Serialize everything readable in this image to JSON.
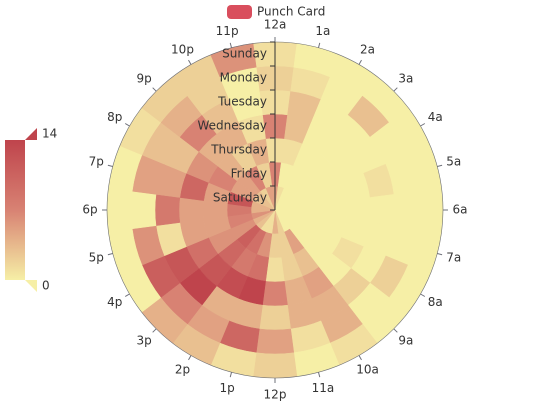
{
  "chart_data": {
    "type": "polar-heatmap",
    "hours": [
      "12a",
      "1a",
      "2a",
      "3a",
      "4a",
      "5a",
      "6a",
      "7a",
      "8a",
      "9a",
      "10a",
      "11a",
      "12p",
      "1p",
      "2p",
      "3p",
      "4p",
      "5p",
      "6p",
      "7p",
      "8p",
      "9p",
      "10p",
      "11p"
    ],
    "days": [
      "Saturday",
      "Friday",
      "Thursday",
      "Wednesday",
      "Tuesday",
      "Monday",
      "Sunday"
    ],
    "series": [
      {
        "name": "Punch Card",
        "color": "#d94e5d",
        "values": [
          [
            5,
            1,
            0,
            0,
            0,
            0,
            0,
            0,
            0,
            0,
            0,
            2,
            4,
            1,
            1,
            3,
            4,
            6,
            4,
            4,
            3,
            3,
            2,
            5
          ],
          [
            7,
            0,
            0,
            0,
            0,
            0,
            0,
            0,
            0,
            0,
            5,
            2,
            2,
            6,
            9,
            11,
            6,
            7,
            8,
            12,
            5,
            5,
            7,
            2
          ],
          [
            1,
            1,
            0,
            0,
            0,
            0,
            0,
            0,
            0,
            0,
            3,
            2,
            1,
            9,
            8,
            10,
            6,
            5,
            5,
            5,
            7,
            4,
            2,
            4
          ],
          [
            7,
            3,
            0,
            0,
            0,
            0,
            0,
            0,
            1,
            0,
            5,
            4,
            7,
            14,
            13,
            12,
            9,
            5,
            5,
            10,
            6,
            4,
            4,
            1
          ],
          [
            1,
            3,
            0,
            0,
            0,
            1,
            0,
            0,
            0,
            2,
            4,
            4,
            2,
            4,
            4,
            14,
            12,
            1,
            8,
            5,
            3,
            7,
            3,
            0
          ],
          [
            2,
            1,
            0,
            3,
            0,
            0,
            0,
            0,
            2,
            0,
            4,
            1,
            5,
            10,
            5,
            7,
            11,
            6,
            0,
            5,
            3,
            4,
            2,
            0
          ],
          [
            1,
            0,
            0,
            0,
            0,
            0,
            0,
            0,
            0,
            0,
            1,
            0,
            2,
            1,
            3,
            4,
            0,
            0,
            0,
            0,
            1,
            2,
            2,
            6
          ]
        ]
      }
    ],
    "visual_map": {
      "min": 0,
      "max": 14,
      "colors": [
        "#f6efa6",
        "#d88273",
        "#bf444c"
      ]
    }
  }
}
